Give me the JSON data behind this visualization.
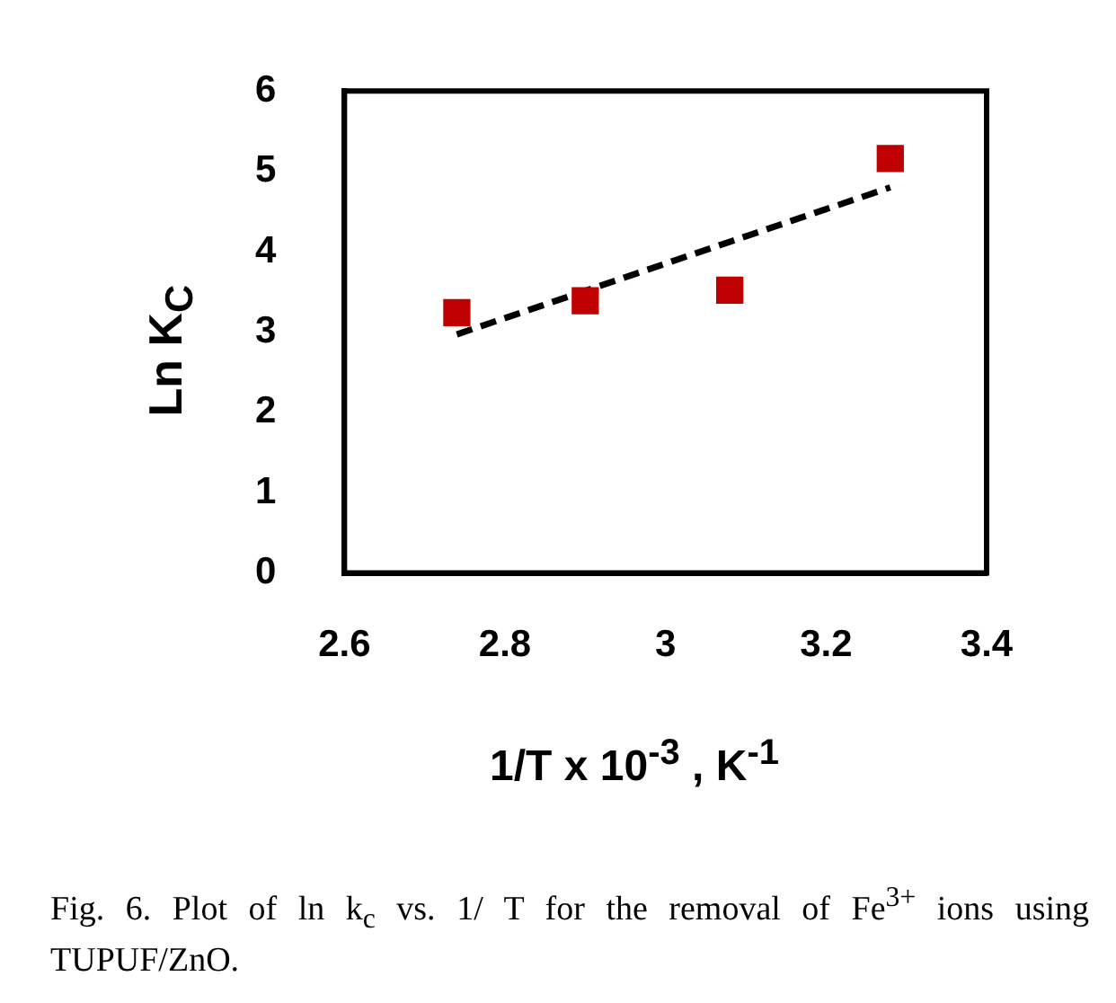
{
  "chart_data": {
    "type": "scatter",
    "xlabel": "1/T x 10$^{-3}$ , K$^{-1}$",
    "ylabel": "Ln K$_{C}$",
    "annotations": [
      "Fig. 6. Plot of ln k$_{c}$ vs. 1/ T for the removal of Fe$^{3+}$ ions using TUPUF/ZnO."
    ],
    "series": [
      {
        "type": "scatter",
        "color": "#c00000",
        "marker": "square",
        "x": [
          2.74,
          2.9,
          3.08,
          3.28
        ],
        "values": [
          3.24,
          3.39,
          3.52,
          5.16
        ]
      },
      {
        "type": "line",
        "color": "#000000",
        "marker": "none",
        "line_style": "dashed",
        "x": [
          2.74,
          3.28
        ],
        "values": [
          2.97,
          4.8
        ]
      }
    ],
    "xlim": [
      2.6,
      3.4
    ],
    "xticks": [
      2.6,
      2.8,
      3,
      3.2,
      3.4
    ],
    "ylim": [
      0,
      6
    ],
    "yticks": [
      0,
      1,
      2,
      3,
      4,
      5,
      6
    ],
    "grid": false,
    "legend": false
  }
}
